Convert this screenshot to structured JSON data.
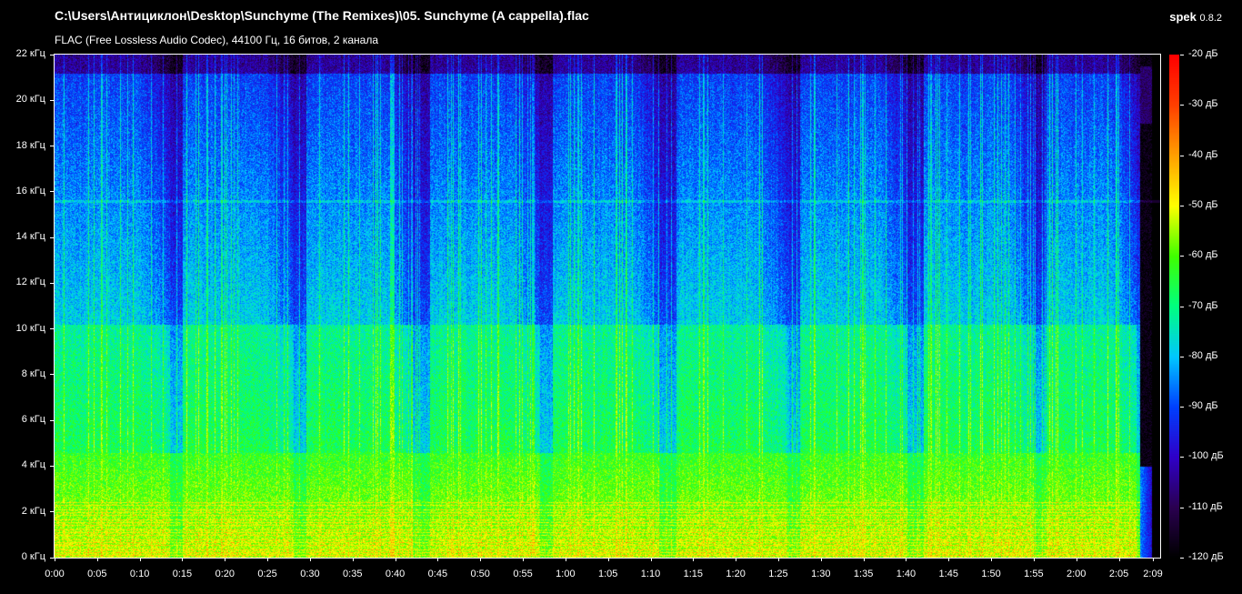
{
  "header": {
    "title": "C:\\Users\\Антициклон\\Desktop\\Sunchyme (The Remixes)\\05. Sunchyme (A cappella).flac",
    "subtitle": "FLAC (Free Lossless Audio Codec), 44100 Гц, 16 битов, 2 канала",
    "app_name": "spek",
    "app_version": "0.8.2"
  },
  "chart_data": {
    "type": "heatmap",
    "title": "",
    "xlabel": "",
    "ylabel": "",
    "duration_seconds": 129,
    "xlim_seconds": [
      0,
      129
    ],
    "ylim_khz": [
      0,
      22
    ],
    "zlim_db": [
      -120,
      -20
    ],
    "x_ticks": [
      "0:00",
      "0:05",
      "0:10",
      "0:15",
      "0:20",
      "0:25",
      "0:30",
      "0:35",
      "0:40",
      "0:45",
      "0:50",
      "0:55",
      "1:00",
      "1:05",
      "1:10",
      "1:15",
      "1:20",
      "1:25",
      "1:30",
      "1:35",
      "1:40",
      "1:45",
      "1:50",
      "1:55",
      "2:00",
      "2:05",
      "2:09"
    ],
    "x_tick_seconds": [
      0,
      5,
      10,
      15,
      20,
      25,
      30,
      35,
      40,
      45,
      50,
      55,
      60,
      65,
      70,
      75,
      80,
      85,
      90,
      95,
      100,
      105,
      110,
      115,
      120,
      125,
      129
    ],
    "y_ticks": [
      "0 кГц",
      "2 кГц",
      "4 кГц",
      "6 кГц",
      "8 кГц",
      "10 кГц",
      "12 кГц",
      "14 кГц",
      "16 кГц",
      "18 кГц",
      "20 кГц",
      "22 кГц"
    ],
    "y_tick_khz": [
      0,
      2,
      4,
      6,
      8,
      10,
      12,
      14,
      16,
      18,
      20,
      22
    ],
    "colorbar_ticks": [
      "-20 дБ",
      "-30 дБ",
      "-40 дБ",
      "-50 дБ",
      "-60 дБ",
      "-70 дБ",
      "-80 дБ",
      "-90 дБ",
      "-100 дБ",
      "-110 дБ",
      "-120 дБ"
    ],
    "colorbar_tick_db": [
      -20,
      -30,
      -40,
      -50,
      -60,
      -70,
      -80,
      -90,
      -100,
      -110,
      -120
    ],
    "colormap": [
      "#000000",
      "#2a0050",
      "#3000c8",
      "#0040ff",
      "#00c8ff",
      "#00ff80",
      "#40ff00",
      "#ffff00",
      "#ffa000",
      "#ff4000",
      "#ff0000"
    ],
    "phrases_seconds": [
      [
        0,
        13.5
      ],
      [
        15,
        28
      ],
      [
        29.5,
        42
      ],
      [
        44,
        57
      ],
      [
        58.5,
        71
      ],
      [
        73,
        86
      ],
      [
        87.5,
        100
      ],
      [
        102,
        115
      ],
      [
        116.5,
        127
      ]
    ],
    "band_edges_khz": [
      4.6,
      10.2
    ]
  }
}
